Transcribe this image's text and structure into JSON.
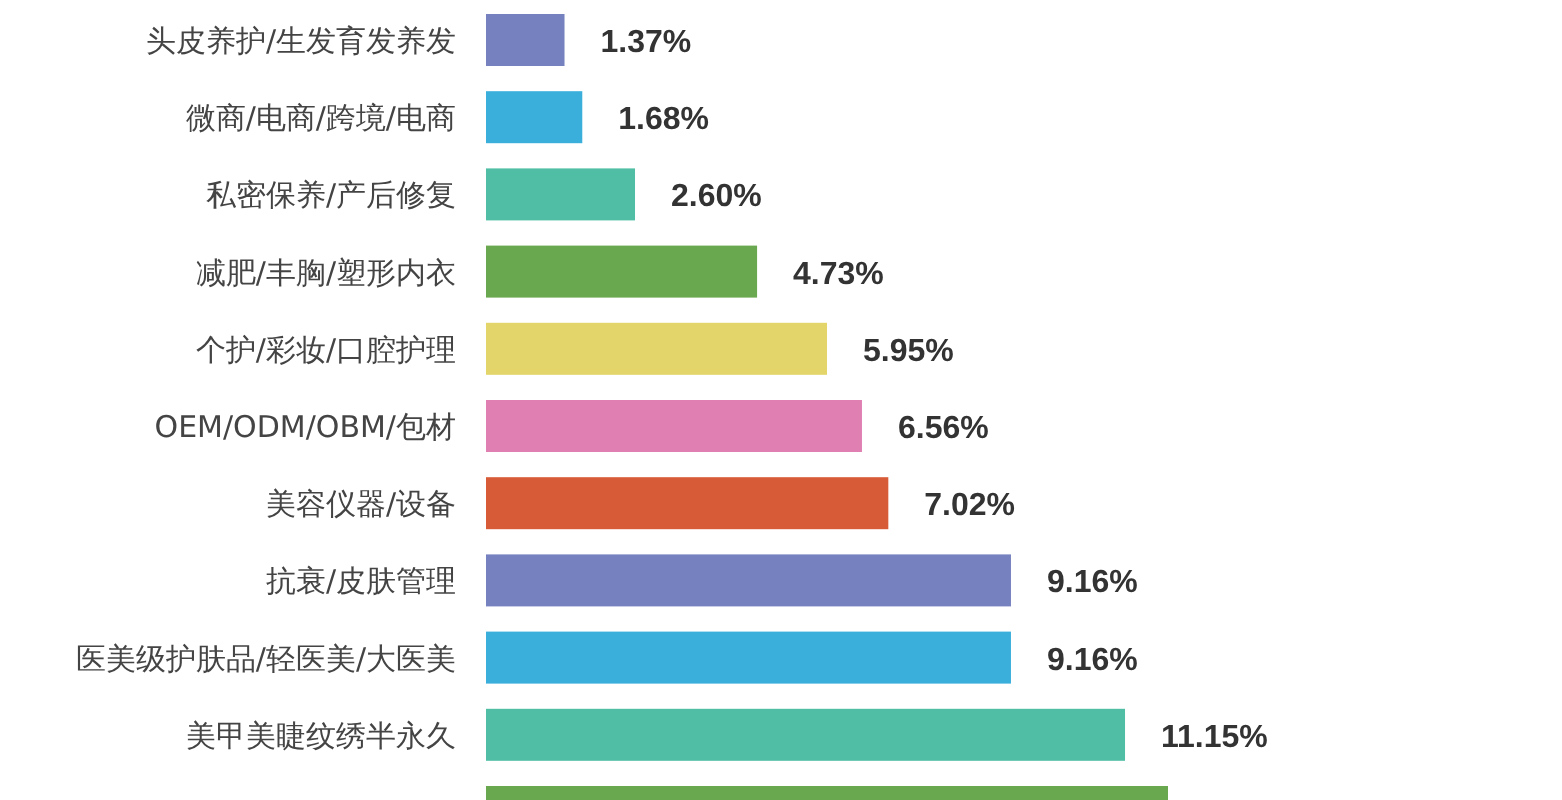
{
  "chart_data": {
    "type": "bar",
    "orientation": "horizontal",
    "categories": [
      "头皮养护/生发育发养发",
      "微商/电商/跨境/电商",
      "私密保养/产后修复",
      "减肥/丰胸/塑形内衣",
      "个护/彩妆/口腔护理",
      "OEM/ODM/OBM/包材",
      "美容仪器/设备",
      "抗衰/皮肤管理",
      "医美级护肤品/轻医美/大医美",
      "美甲美睫纹绣半永久",
      null
    ],
    "values": [
      1.37,
      1.68,
      2.6,
      4.73,
      5.95,
      6.56,
      7.02,
      9.16,
      9.16,
      11.15,
      11.9
    ],
    "value_labels": [
      "1.37%",
      "1.68%",
      "2.60%",
      "4.73%",
      "5.95%",
      "6.56%",
      "7.02%",
      "9.16%",
      "9.16%",
      "11.15%",
      null
    ],
    "colors": [
      "#7681c0",
      "#3aafdc",
      "#4fbea4",
      "#6aa84f",
      "#e3d56a",
      "#e07fb2",
      "#d85b38",
      "#7681c0",
      "#3aafdc",
      "#4fbea4",
      "#6aa84f"
    ]
  }
}
